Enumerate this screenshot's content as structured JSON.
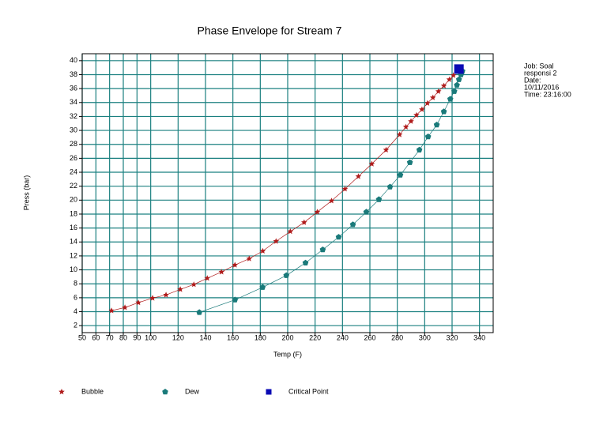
{
  "chart_data": {
    "type": "scatter",
    "title": "Phase Envelope for Stream 7",
    "x_label": "Temp (F)",
    "y_label": "Press (bar)",
    "xlim": [
      50,
      350
    ],
    "ylim": [
      1,
      41
    ],
    "xticks": [
      50,
      60,
      70,
      80,
      90,
      100,
      120,
      140,
      160,
      180,
      200,
      220,
      240,
      260,
      280,
      300,
      320,
      340
    ],
    "yticks": [
      2,
      4,
      6,
      8,
      10,
      12,
      14,
      16,
      18,
      20,
      22,
      24,
      26,
      28,
      30,
      32,
      34,
      36,
      38,
      40
    ],
    "grid": true,
    "grid_color": "#1b8080",
    "annotation": [
      "Job:  Soal",
      "responsi 2",
      "Date:",
      "10/11/2016",
      "Time: 23:16:00"
    ],
    "series": [
      {
        "name": "Bubble",
        "color": "#b01c1c",
        "marker": "star",
        "line": true,
        "x": [
          71.4,
          81.2,
          91,
          101.4,
          111.2,
          121.6,
          131.5,
          141.3,
          151.7,
          161.5,
          171.9,
          181.8,
          191.5,
          201.9,
          212,
          221.6,
          232,
          241.8,
          251.6,
          261.4,
          271.8,
          281.7,
          286.3,
          290,
          294,
          298,
          302,
          306,
          310,
          314,
          318,
          321
        ],
        "values": [
          4.15,
          4.6,
          5.3,
          5.95,
          6.4,
          7.2,
          7.9,
          8.8,
          9.7,
          10.7,
          11.6,
          12.7,
          14.1,
          15.5,
          16.8,
          18.3,
          19.9,
          21.6,
          23.4,
          25.2,
          27.2,
          29.4,
          30.5,
          31.3,
          32.2,
          33.0,
          33.9,
          34.7,
          35.6,
          36.4,
          37.3,
          37.9
        ]
      },
      {
        "name": "Dew",
        "color": "#1a7a7a",
        "marker": "pentagon",
        "line": true,
        "x": [
          135.5,
          161.5,
          181.7,
          199,
          213,
          225.6,
          237.2,
          247.6,
          257.4,
          266.6,
          274.7,
          282.2,
          289.2,
          296.1,
          302.5,
          308.8,
          314,
          318.7,
          321.6,
          323.5,
          325,
          326.5,
          327.5
        ],
        "values": [
          3.9,
          5.7,
          7.5,
          9.2,
          11.0,
          12.9,
          14.7,
          16.5,
          18.3,
          20.1,
          21.9,
          23.6,
          25.4,
          27.2,
          29.1,
          30.8,
          32.7,
          34.5,
          35.6,
          36.5,
          37.3,
          38.0,
          38.5
        ]
      },
      {
        "name": "Critical Point",
        "color": "#0a0ab4",
        "marker": "square",
        "line": false,
        "x": [
          325
        ],
        "values": [
          38.8
        ]
      }
    ]
  }
}
